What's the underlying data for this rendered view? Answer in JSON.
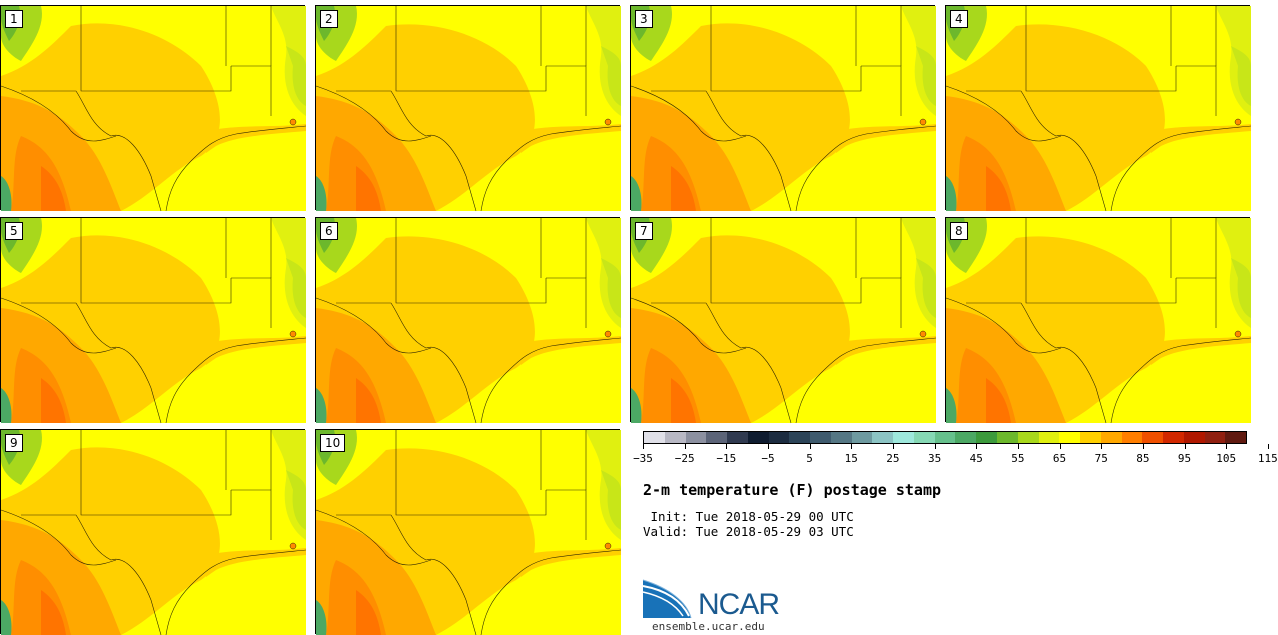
{
  "panels": [
    {
      "label": "1"
    },
    {
      "label": "2"
    },
    {
      "label": "3"
    },
    {
      "label": "4"
    },
    {
      "label": "5"
    },
    {
      "label": "6"
    },
    {
      "label": "7"
    },
    {
      "label": "8"
    },
    {
      "label": "9"
    },
    {
      "label": "10"
    }
  ],
  "colorbar": {
    "colors": [
      "#e0e0e8",
      "#b8b8c4",
      "#8c90a0",
      "#5c6478",
      "#303a50",
      "#0f1c30",
      "#1c2c40",
      "#2c4458",
      "#3f5b6e",
      "#557784",
      "#6e9aa0",
      "#8cc4c4",
      "#9ee8dc",
      "#86d8b4",
      "#66c08c",
      "#4ca864",
      "#3c9a3c",
      "#6cb82c",
      "#a8d81c",
      "#e0f010",
      "#ffff00",
      "#ffd000",
      "#ffa800",
      "#ff7e00",
      "#f05000",
      "#d22800",
      "#b01800",
      "#902010",
      "#601a10"
    ],
    "tick_labels": [
      "−35",
      "−25",
      "−15",
      "−5",
      "5",
      "15",
      "25",
      "35",
      "45",
      "55",
      "65",
      "75",
      "85",
      "95",
      "105",
      "115"
    ]
  },
  "title": "2-m temperature (F) postage stamp",
  "init": " Init: Tue 2018-05-29 00 UTC",
  "valid": "Valid: Tue 2018-05-29 03 UTC",
  "logo": {
    "text": "NCAR",
    "url": "ensemble.ucar.edu"
  }
}
